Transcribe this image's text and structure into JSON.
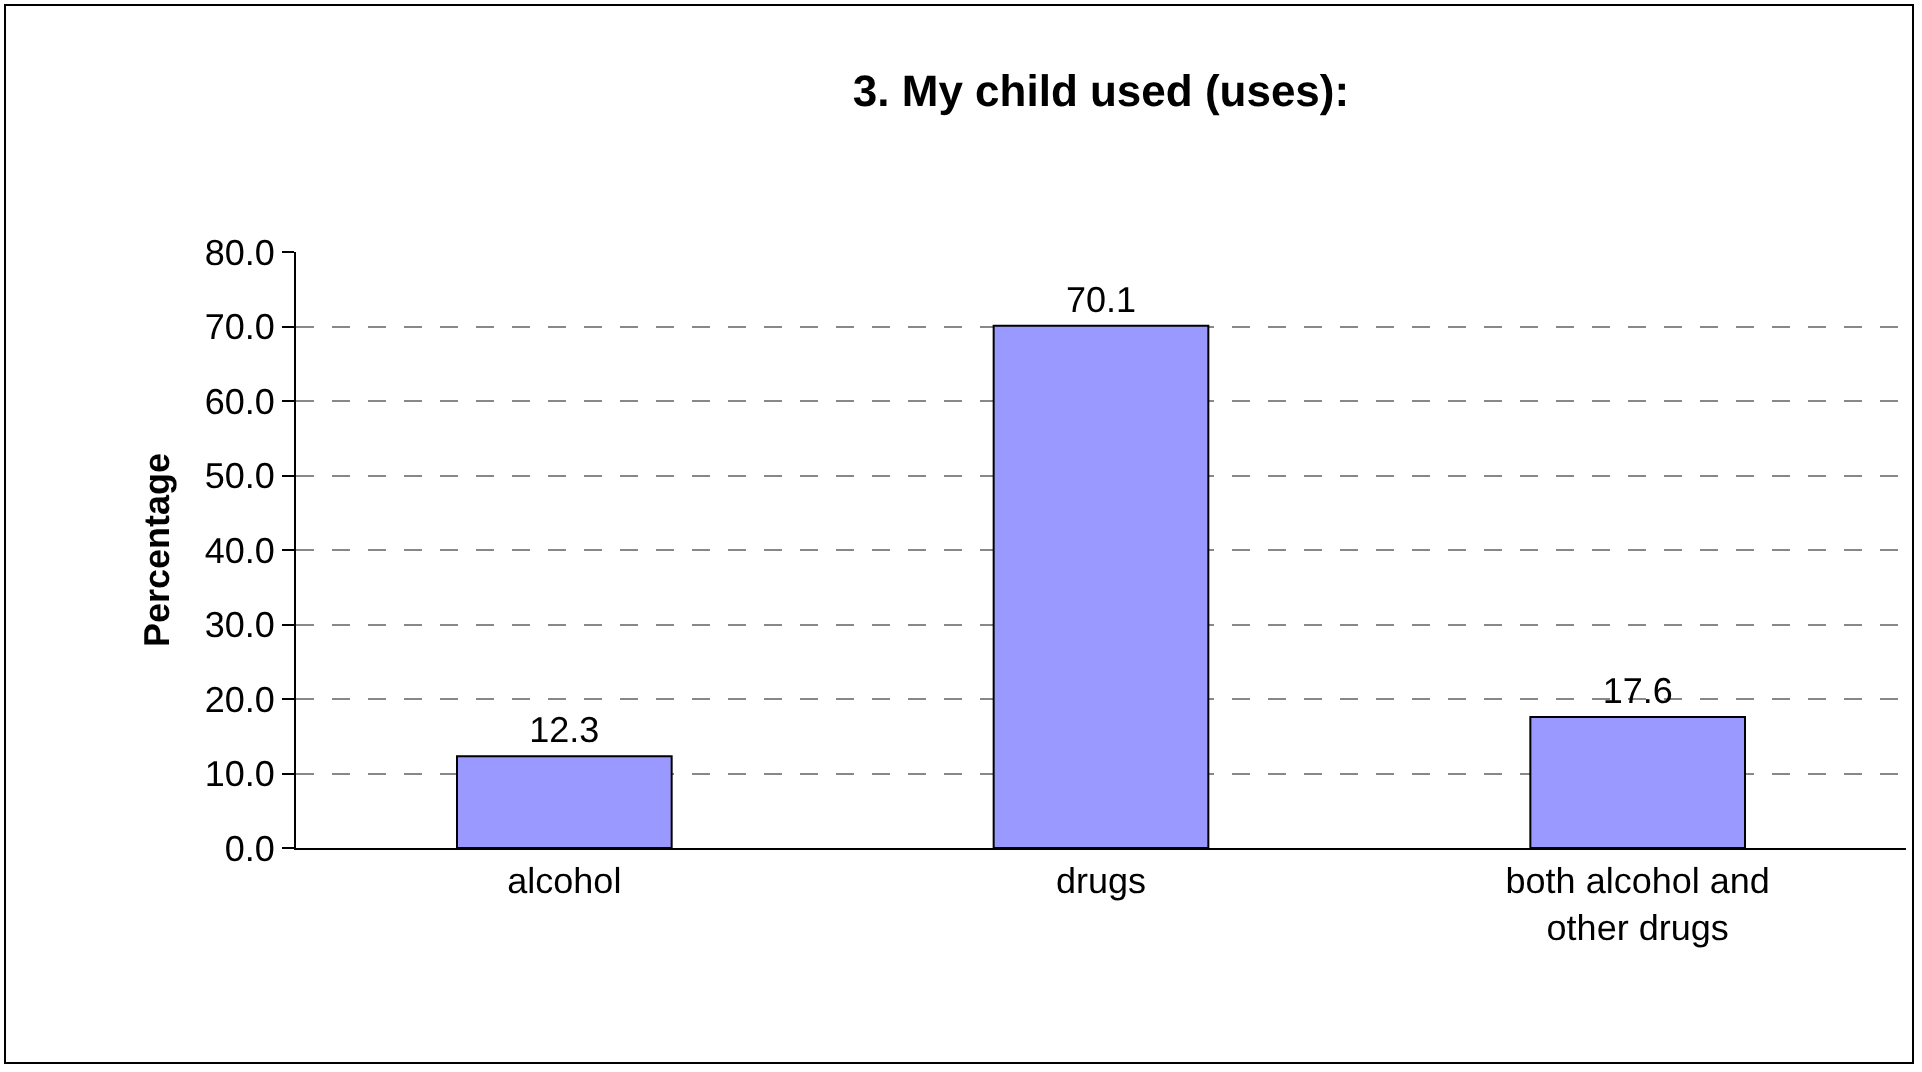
{
  "chart_data": {
    "type": "bar",
    "title": "3. My child used (uses):",
    "ylabel": "Percentage",
    "categories": [
      "alcohol",
      "drugs",
      "both alcohol and other drugs"
    ],
    "values": [
      12.3,
      70.1,
      17.6
    ],
    "color": "#9999ff",
    "data_labels": true,
    "ylim": [
      0,
      80
    ],
    "yticks": [
      {
        "value": 0,
        "label": "0.0"
      },
      {
        "value": 10,
        "label": "10.0"
      },
      {
        "value": 20,
        "label": "20.0"
      },
      {
        "value": 30,
        "label": "30.0"
      },
      {
        "value": 40,
        "label": "40.0"
      },
      {
        "value": 50,
        "label": "50.0"
      },
      {
        "value": 60,
        "label": "60.0"
      },
      {
        "value": 70,
        "label": "70.0"
      },
      {
        "value": 80,
        "label": "80.0"
      }
    ],
    "grid": "y",
    "legend": false
  }
}
